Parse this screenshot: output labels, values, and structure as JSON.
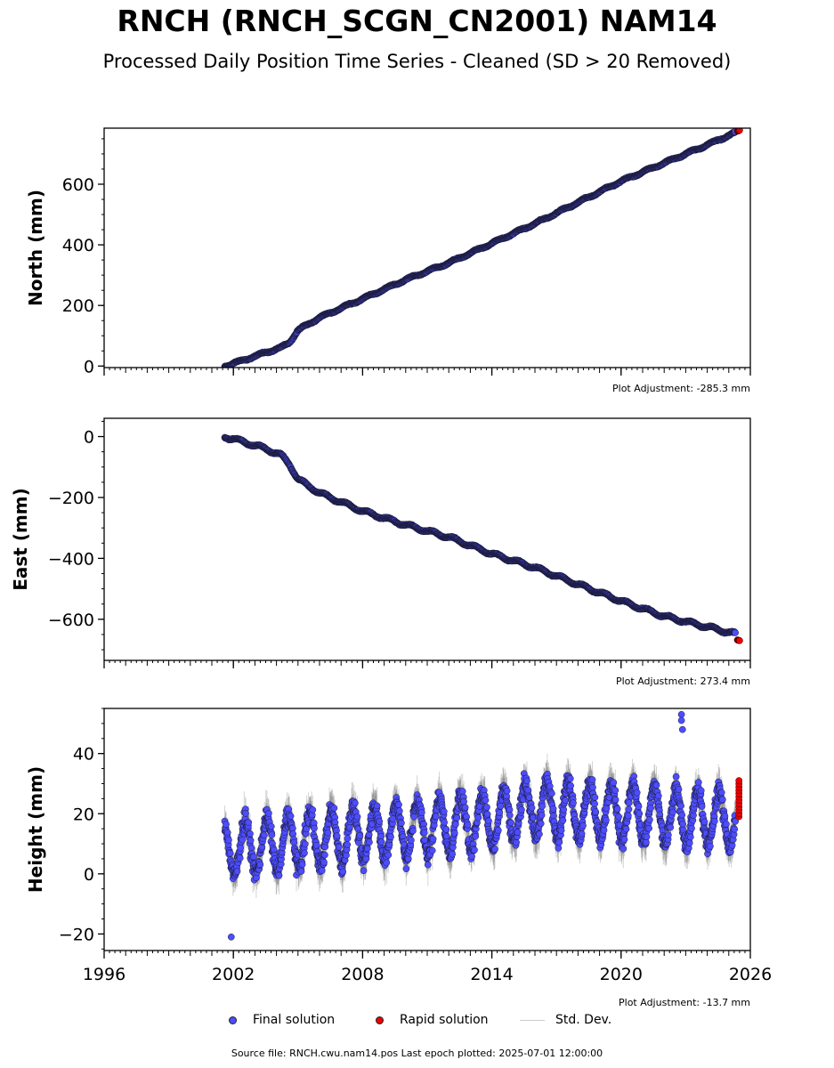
{
  "title": "RNCH (RNCH_SCGN_CN2001) NAM14",
  "subtitle": "Processed Daily Position Time Series - Cleaned (SD > 20 Removed)",
  "legend": {
    "final": "Final solution",
    "rapid": "Rapid solution",
    "stddev": "Std. Dev."
  },
  "footer": "Source file: RNCH.cwu.nam14.pos  Last epoch plotted: 2025-07-01 12:00:00",
  "colors": {
    "final": "#4d4dff",
    "rapid": "#ee0000",
    "stddev": "#bbbbbb",
    "marker_edge": "#1a1a33"
  },
  "chart_data": [
    {
      "type": "scatter",
      "ylabel": "North (mm)",
      "xlim": [
        1996,
        2026
      ],
      "ylim": [
        -5,
        785
      ],
      "yticks": [
        0,
        200,
        400,
        600
      ],
      "ytick_labels": [
        "0",
        "200",
        "400",
        "600"
      ],
      "adjustment": "Plot Adjustment: -285.3 mm",
      "final_series": {
        "x": [
          2001.6,
          2002.5,
          2003.5,
          2004.2,
          2004.6,
          2005.0,
          2006.0,
          2008.0,
          2010.0,
          2012.0,
          2014.0,
          2016.0,
          2018.0,
          2020.0,
          2022.0,
          2024.0,
          2025.3
        ],
        "y": [
          0,
          20,
          45,
          60,
          78,
          118,
          160,
          222,
          285,
          340,
          405,
          470,
          540,
          610,
          670,
          730,
          770
        ]
      },
      "rapid_series": {
        "x": [
          2025.4,
          2025.5
        ],
        "y": [
          775,
          778
        ]
      }
    },
    {
      "type": "scatter",
      "ylabel": "East (mm)",
      "xlim": [
        1996,
        2026
      ],
      "ylim": [
        -735,
        60
      ],
      "yticks": [
        0,
        -200,
        -400,
        -600
      ],
      "ytick_labels": [
        "0",
        "−200",
        "−400",
        "−600"
      ],
      "adjustment": "Plot Adjustment: 273.4 mm",
      "final_series": {
        "x": [
          2001.6,
          2002.5,
          2003.5,
          2004.2,
          2004.6,
          2005.0,
          2006.0,
          2008.0,
          2010.0,
          2012.0,
          2014.0,
          2016.0,
          2018.0,
          2020.0,
          2022.0,
          2024.0,
          2025.3
        ],
        "y": [
          0,
          -18,
          -40,
          -60,
          -90,
          -140,
          -185,
          -245,
          -290,
          -330,
          -385,
          -430,
          -485,
          -540,
          -590,
          -625,
          -648
        ]
      },
      "rapid_series": {
        "x": [
          2025.4,
          2025.5
        ],
        "y": [
          -668,
          -670
        ]
      }
    },
    {
      "type": "scatter",
      "ylabel": "Height (mm)",
      "xlabel": "",
      "xlim": [
        1996,
        2026
      ],
      "ylim": [
        -25.5,
        55
      ],
      "yticks": [
        -20,
        0,
        20,
        40
      ],
      "ytick_labels": [
        "−20",
        "0",
        "20",
        "40"
      ],
      "xticks": [
        1996,
        2002,
        2008,
        2014,
        2020,
        2026
      ],
      "xtick_labels": [
        "1996",
        "2002",
        "2008",
        "2014",
        "2020",
        "2026"
      ],
      "adjustment": "Plot Adjustment: -13.7 mm",
      "final_series": {
        "trend_x": [
          2001.6,
          2014,
          2016,
          2025.3
        ],
        "trend_y": [
          8,
          18,
          22,
          18
        ],
        "seasonal_amplitude_mm": 9,
        "min_y": -21,
        "max_y": 53
      },
      "rapid_series": {
        "x": [
          2025.45,
          2025.5
        ],
        "y": [
          19,
          31
        ]
      }
    }
  ]
}
